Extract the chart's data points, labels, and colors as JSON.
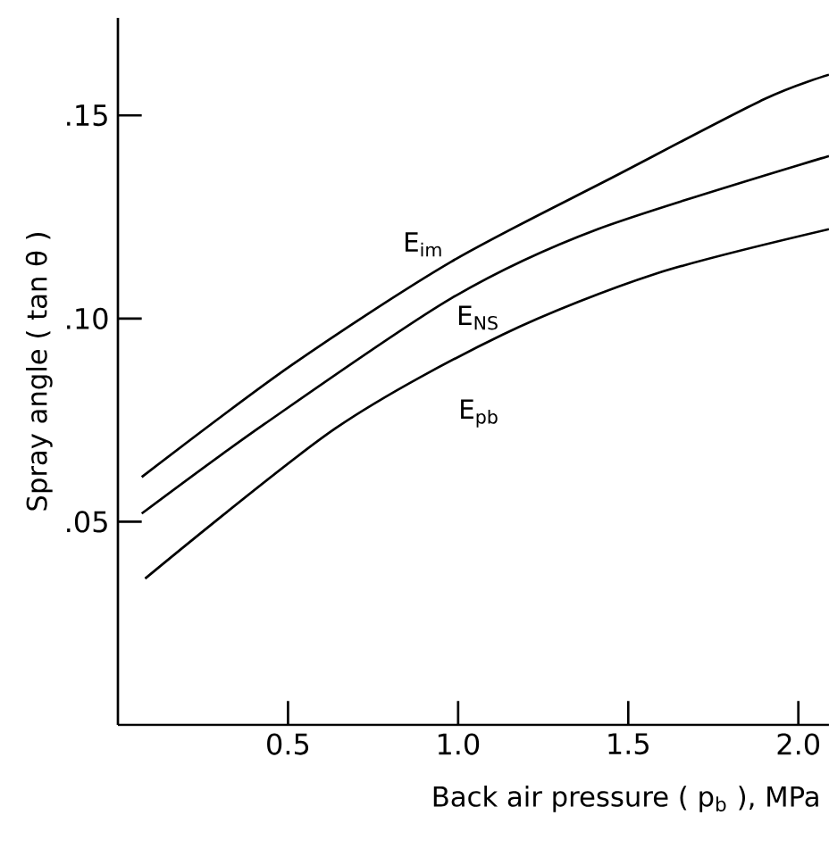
{
  "chart_data": {
    "type": "line",
    "xlabel": "Back air pressure ( p$_{b}$ ), MPa",
    "ylabel": "Spray angle  ( tan θ )",
    "series": [
      {
        "name": "E$_{im}$",
        "color": "#000000",
        "x": [
          0.07,
          0.51,
          0.98,
          1.46,
          1.9,
          2.09
        ],
        "values": [
          0.061,
          0.0885,
          0.114,
          0.135,
          0.154,
          0.16
        ]
      },
      {
        "name": "E$_{NS}$",
        "color": "#000000",
        "x": [
          0.07,
          0.43,
          0.98,
          1.41,
          2.09
        ],
        "values": [
          0.052,
          0.074,
          0.105,
          0.122,
          0.14
        ]
      },
      {
        "name": "E$_{pb}$",
        "color": "#000000",
        "x": [
          0.08,
          0.64,
          1.13,
          1.58,
          2.09
        ],
        "values": [
          0.036,
          0.073,
          0.096,
          0.111,
          0.122
        ]
      }
    ],
    "xlim": [
      0,
      2.09
    ],
    "ylim": [
      0,
      0.174
    ],
    "xticks": [
      0.5,
      {
        "value": 1,
        "label": "1.0"
      },
      1.5,
      {
        "value": 2,
        "label": "2.0"
      }
    ],
    "yticks": [
      {
        "value": 0.05,
        "label": ".05"
      },
      {
        "value": 0.1,
        "label": ".10"
      },
      {
        "value": 0.15,
        "label": ".15"
      }
    ],
    "grid": false,
    "marker": "none",
    "line_style": "solid"
  }
}
